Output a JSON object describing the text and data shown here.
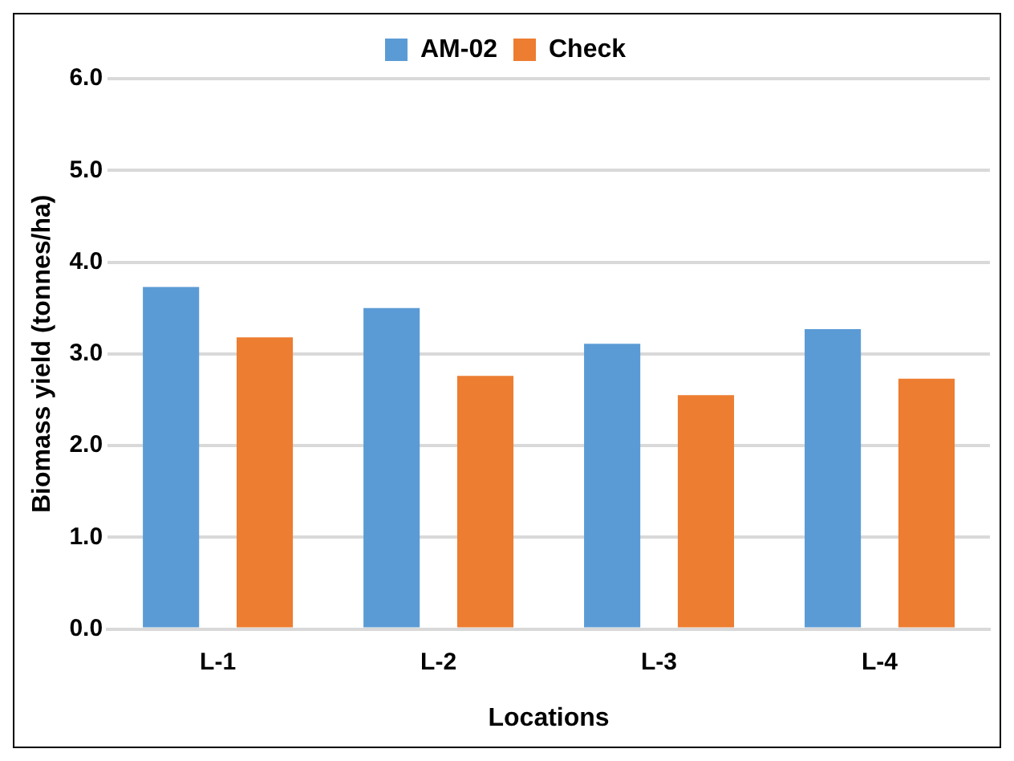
{
  "chart_data": {
    "type": "bar",
    "xlabel": "Locations",
    "ylabel": "Biomass yield (tonnes/ha)",
    "categories": [
      "L-1",
      "L-2",
      "L-3",
      "L-4"
    ],
    "series": [
      {
        "name": "AM-02",
        "color": "#5b9bd5",
        "values": [
          3.73,
          3.5,
          3.11,
          3.27
        ]
      },
      {
        "name": "Check",
        "color": "#ed7d31",
        "values": [
          3.18,
          2.76,
          2.55,
          2.73
        ]
      }
    ],
    "ylim": [
      0,
      6
    ],
    "yticks": [
      {
        "value": 0,
        "label": "0.0"
      },
      {
        "value": 1,
        "label": "1.0"
      },
      {
        "value": 2,
        "label": "2.0"
      },
      {
        "value": 3,
        "label": "3.0"
      },
      {
        "value": 4,
        "label": "4.0"
      },
      {
        "value": 5,
        "label": "5.0"
      },
      {
        "value": 6,
        "label": "6.0"
      }
    ],
    "grid": "y",
    "legend": "top"
  }
}
